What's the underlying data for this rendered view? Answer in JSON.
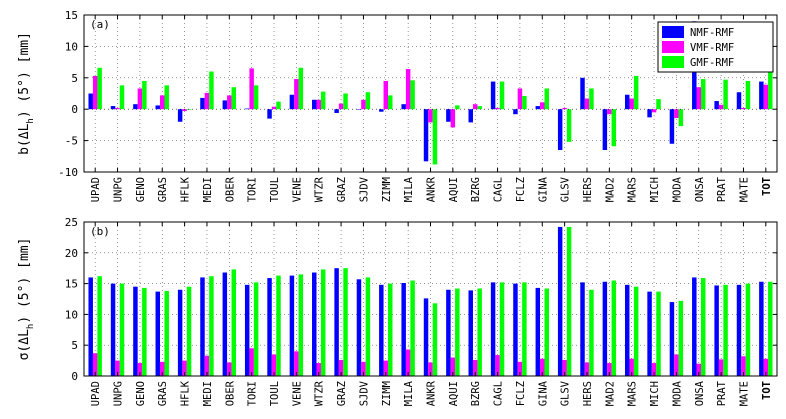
{
  "chart_data": [
    {
      "type": "bar",
      "panel_label": "(a)",
      "ylabel": "b(ΔL_h) (5°) [mm]",
      "ylabel_main": "b(ΔL",
      "ylabel_sub": "h",
      "ylabel_tail": ") (5°) [mm]",
      "ylim": [
        -10,
        15
      ],
      "yticks": [
        -10,
        -5,
        0,
        5,
        10,
        15
      ],
      "grid": true,
      "legend_position": "top-right",
      "categories": [
        "UPAD",
        "UNPG",
        "GENO",
        "GRAS",
        "HFLK",
        "MEDI",
        "OBER",
        "TORI",
        "TOUL",
        "VENE",
        "WTZR",
        "GRAZ",
        "SJDV",
        "ZIMM",
        "MILA",
        "ANKR",
        "AQUI",
        "BZRG",
        "CAGL",
        "FCLZ",
        "GINA",
        "GLSV",
        "HERS",
        "MAD2",
        "MARS",
        "MICH",
        "MODA",
        "ONSA",
        "PRAT",
        "MATE",
        "TOT"
      ],
      "series": [
        {
          "name": "NMF-RMF",
          "color": "#0000ff",
          "values": [
            2.5,
            0.5,
            0.8,
            0.6,
            -2.0,
            1.8,
            1.4,
            0.1,
            -1.5,
            2.3,
            1.5,
            -0.6,
            0.0,
            -0.4,
            0.8,
            -8.3,
            -2.0,
            -2.1,
            4.4,
            -0.8,
            0.5,
            -6.5,
            5.0,
            -6.5,
            2.3,
            -1.3,
            -5.5,
            14.0,
            1.3,
            2.7,
            4.4
          ]
        },
        {
          "name": "VMF-RMF",
          "color": "#ff00ff",
          "values": [
            5.3,
            0.2,
            3.3,
            2.2,
            -0.3,
            2.6,
            2.2,
            6.5,
            0.4,
            4.8,
            1.5,
            0.9,
            1.5,
            4.5,
            6.4,
            -2.1,
            -2.9,
            0.8,
            0.2,
            3.3,
            1.1,
            0.2,
            1.7,
            -0.8,
            1.7,
            -0.5,
            -1.4,
            3.5,
            0.7,
            0.2,
            3.9
          ]
        },
        {
          "name": "GMF-RMF",
          "color": "#00ff00",
          "values": [
            6.6,
            3.8,
            4.5,
            3.8,
            -0.1,
            6.0,
            3.5,
            3.8,
            1.2,
            6.6,
            2.8,
            2.5,
            2.7,
            2.2,
            4.6,
            -8.8,
            0.6,
            0.5,
            4.4,
            2.1,
            3.3,
            -5.2,
            3.3,
            -5.9,
            5.3,
            1.6,
            -2.7,
            4.8,
            4.7,
            4.5,
            6.7
          ]
        }
      ],
      "category_bold": [
        "TOT"
      ]
    },
    {
      "type": "bar",
      "panel_label": "(b)",
      "ylabel": "σ(ΔL_h) (5°) [mm]",
      "ylabel_main": "σ(ΔL",
      "ylabel_sub": "h",
      "ylabel_tail": ") (5°) [mm]",
      "ylim": [
        0,
        25
      ],
      "yticks": [
        0,
        5,
        10,
        15,
        20,
        25
      ],
      "grid": true,
      "categories": [
        "UPAD",
        "UNPG",
        "GENO",
        "GRAS",
        "HFLK",
        "MEDI",
        "OBER",
        "TORI",
        "TOUL",
        "VENE",
        "WTZR",
        "GRAZ",
        "SJDV",
        "ZIMM",
        "MILA",
        "ANKR",
        "AQUI",
        "BZRG",
        "CAGL",
        "FCLZ",
        "GINA",
        "GLSV",
        "HERS",
        "MAD2",
        "MARS",
        "MICH",
        "MODA",
        "ONSA",
        "PRAT",
        "MATE",
        "TOT"
      ],
      "series": [
        {
          "name": "NMF-RMF",
          "color": "#0000ff",
          "values": [
            16.0,
            15.0,
            14.5,
            13.7,
            14.0,
            16.0,
            16.8,
            14.8,
            15.9,
            16.3,
            16.8,
            17.5,
            15.7,
            14.8,
            15.1,
            12.6,
            14.0,
            13.9,
            15.2,
            15.0,
            14.3,
            24.2,
            15.2,
            15.3,
            14.8,
            13.7,
            12.0,
            16.0,
            14.7,
            14.8,
            15.3
          ]
        },
        {
          "name": "VMF-RMF",
          "color": "#ff00ff",
          "values": [
            3.7,
            2.5,
            2.1,
            2.3,
            2.5,
            3.3,
            2.2,
            4.5,
            3.5,
            4.0,
            2.1,
            2.6,
            2.3,
            2.5,
            4.3,
            2.2,
            3.0,
            2.6,
            3.4,
            2.3,
            2.8,
            2.6,
            2.2,
            2.1,
            2.8,
            2.1,
            3.5,
            2.0,
            2.7,
            3.2,
            2.8
          ]
        },
        {
          "name": "GMF-RMF",
          "color": "#00ff00",
          "values": [
            16.2,
            15.0,
            14.3,
            13.8,
            14.5,
            16.2,
            17.3,
            15.2,
            16.3,
            16.5,
            17.3,
            17.5,
            16.0,
            15.0,
            15.5,
            11.8,
            14.2,
            14.2,
            15.2,
            15.2,
            14.2,
            24.2,
            14.0,
            15.5,
            14.5,
            13.7,
            12.2,
            15.9,
            14.8,
            15.0,
            15.3
          ]
        }
      ],
      "category_bold": [
        "TOT"
      ]
    }
  ]
}
